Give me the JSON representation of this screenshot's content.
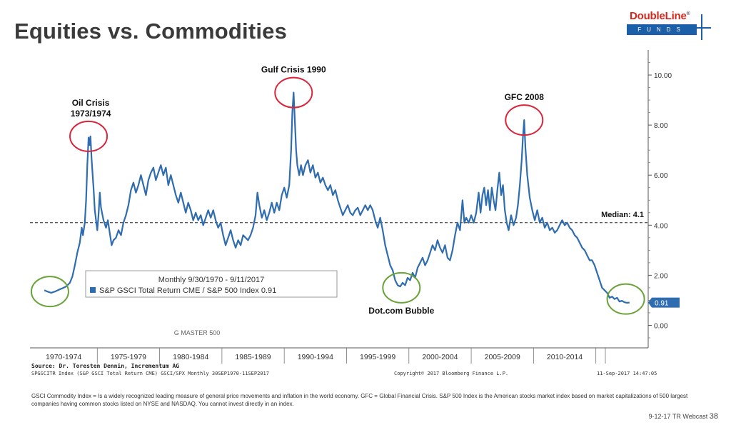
{
  "header": {
    "title": "Equities vs. Commodities",
    "logo_text": "DoubleLine",
    "logo_sub": "FUNDS",
    "logo_mark": "®"
  },
  "chart_data": {
    "type": "line",
    "series": [
      {
        "name": "S&P GSCI Total Return CME / S&P 500 Index 0.91",
        "color": "#2f6db0",
        "points": [
          [
            1970.75,
            1.4
          ],
          [
            1971.0,
            1.35
          ],
          [
            1971.3,
            1.3
          ],
          [
            1971.6,
            1.35
          ],
          [
            1971.9,
            1.42
          ],
          [
            1972.2,
            1.48
          ],
          [
            1972.5,
            1.55
          ],
          [
            1972.8,
            1.7
          ],
          [
            1973.0,
            1.95
          ],
          [
            1973.2,
            2.4
          ],
          [
            1973.4,
            2.9
          ],
          [
            1973.6,
            3.3
          ],
          [
            1973.75,
            3.9
          ],
          [
            1973.85,
            3.6
          ],
          [
            1974.0,
            4.1
          ],
          [
            1974.1,
            5.0
          ],
          [
            1974.2,
            6.4
          ],
          [
            1974.3,
            7.5
          ],
          [
            1974.38,
            7.2
          ],
          [
            1974.45,
            7.55
          ],
          [
            1974.55,
            6.6
          ],
          [
            1974.7,
            5.5
          ],
          [
            1974.8,
            4.6
          ],
          [
            1974.9,
            4.2
          ],
          [
            1975.0,
            3.8
          ],
          [
            1975.1,
            4.4
          ],
          [
            1975.2,
            5.3
          ],
          [
            1975.3,
            4.7
          ],
          [
            1975.5,
            4.2
          ],
          [
            1975.7,
            3.9
          ],
          [
            1975.85,
            4.2
          ],
          [
            1976.0,
            3.7
          ],
          [
            1976.15,
            3.2
          ],
          [
            1976.3,
            3.4
          ],
          [
            1976.5,
            3.5
          ],
          [
            1976.7,
            3.8
          ],
          [
            1976.9,
            3.6
          ],
          [
            1977.1,
            4.1
          ],
          [
            1977.3,
            4.4
          ],
          [
            1977.5,
            4.8
          ],
          [
            1977.7,
            5.4
          ],
          [
            1977.9,
            5.7
          ],
          [
            1978.1,
            5.3
          ],
          [
            1978.3,
            5.6
          ],
          [
            1978.5,
            6.0
          ],
          [
            1978.7,
            5.6
          ],
          [
            1978.9,
            5.2
          ],
          [
            1979.1,
            5.8
          ],
          [
            1979.3,
            6.1
          ],
          [
            1979.5,
            6.3
          ],
          [
            1979.7,
            5.8
          ],
          [
            1979.9,
            6.1
          ],
          [
            1980.1,
            6.4
          ],
          [
            1980.3,
            6.0
          ],
          [
            1980.5,
            6.3
          ],
          [
            1980.7,
            5.6
          ],
          [
            1980.9,
            6.0
          ],
          [
            1981.1,
            5.6
          ],
          [
            1981.3,
            5.2
          ],
          [
            1981.5,
            4.9
          ],
          [
            1981.7,
            5.3
          ],
          [
            1981.9,
            4.9
          ],
          [
            1982.1,
            4.5
          ],
          [
            1982.3,
            4.9
          ],
          [
            1982.5,
            4.6
          ],
          [
            1982.7,
            4.2
          ],
          [
            1982.9,
            4.5
          ],
          [
            1983.1,
            4.2
          ],
          [
            1983.3,
            4.4
          ],
          [
            1983.5,
            4.0
          ],
          [
            1983.7,
            4.3
          ],
          [
            1983.9,
            4.6
          ],
          [
            1984.1,
            4.3
          ],
          [
            1984.3,
            4.6
          ],
          [
            1984.5,
            4.2
          ],
          [
            1984.7,
            3.9
          ],
          [
            1984.9,
            4.1
          ],
          [
            1985.1,
            3.6
          ],
          [
            1985.3,
            3.2
          ],
          [
            1985.5,
            3.5
          ],
          [
            1985.7,
            3.8
          ],
          [
            1985.9,
            3.4
          ],
          [
            1986.1,
            3.1
          ],
          [
            1986.3,
            3.4
          ],
          [
            1986.5,
            3.2
          ],
          [
            1986.7,
            3.6
          ],
          [
            1986.9,
            3.5
          ],
          [
            1987.1,
            3.4
          ],
          [
            1987.3,
            3.6
          ],
          [
            1987.5,
            3.9
          ],
          [
            1987.7,
            4.4
          ],
          [
            1987.85,
            5.3
          ],
          [
            1988.0,
            4.8
          ],
          [
            1988.2,
            4.3
          ],
          [
            1988.4,
            4.6
          ],
          [
            1988.6,
            4.2
          ],
          [
            1988.8,
            4.5
          ],
          [
            1989.0,
            4.9
          ],
          [
            1989.2,
            4.5
          ],
          [
            1989.4,
            4.9
          ],
          [
            1989.6,
            4.6
          ],
          [
            1989.8,
            5.2
          ],
          [
            1990.0,
            5.5
          ],
          [
            1990.2,
            5.1
          ],
          [
            1990.4,
            5.6
          ],
          [
            1990.55,
            7.0
          ],
          [
            1990.65,
            8.5
          ],
          [
            1990.75,
            9.3
          ],
          [
            1990.85,
            8.2
          ],
          [
            1990.95,
            7.0
          ],
          [
            1991.05,
            6.4
          ],
          [
            1991.2,
            6.0
          ],
          [
            1991.35,
            6.4
          ],
          [
            1991.5,
            6.0
          ],
          [
            1991.7,
            6.4
          ],
          [
            1991.9,
            6.6
          ],
          [
            1992.1,
            6.1
          ],
          [
            1992.3,
            6.4
          ],
          [
            1992.5,
            5.9
          ],
          [
            1992.7,
            6.1
          ],
          [
            1992.9,
            5.7
          ],
          [
            1993.1,
            5.9
          ],
          [
            1993.3,
            5.6
          ],
          [
            1993.5,
            5.4
          ],
          [
            1993.7,
            5.6
          ],
          [
            1993.9,
            5.2
          ],
          [
            1994.1,
            5.4
          ],
          [
            1994.3,
            5.0
          ],
          [
            1994.5,
            4.7
          ],
          [
            1994.7,
            4.4
          ],
          [
            1994.9,
            4.6
          ],
          [
            1995.1,
            4.8
          ],
          [
            1995.3,
            4.5
          ],
          [
            1995.5,
            4.4
          ],
          [
            1995.7,
            4.6
          ],
          [
            1995.9,
            4.7
          ],
          [
            1996.1,
            4.4
          ],
          [
            1996.3,
            4.6
          ],
          [
            1996.5,
            4.8
          ],
          [
            1996.7,
            4.6
          ],
          [
            1996.9,
            4.8
          ],
          [
            1997.1,
            4.6
          ],
          [
            1997.3,
            4.2
          ],
          [
            1997.5,
            3.9
          ],
          [
            1997.7,
            4.3
          ],
          [
            1997.9,
            3.8
          ],
          [
            1998.1,
            3.2
          ],
          [
            1998.3,
            2.8
          ],
          [
            1998.5,
            2.4
          ],
          [
            1998.7,
            2.2
          ],
          [
            1998.9,
            1.8
          ],
          [
            1999.1,
            1.6
          ],
          [
            1999.3,
            1.55
          ],
          [
            1999.5,
            1.7
          ],
          [
            1999.7,
            1.6
          ],
          [
            1999.9,
            1.9
          ],
          [
            2000.1,
            1.8
          ],
          [
            2000.3,
            2.1
          ],
          [
            2000.5,
            1.9
          ],
          [
            2000.7,
            2.3
          ],
          [
            2000.9,
            2.5
          ],
          [
            2001.1,
            2.7
          ],
          [
            2001.3,
            2.4
          ],
          [
            2001.5,
            2.6
          ],
          [
            2001.7,
            2.9
          ],
          [
            2001.9,
            3.2
          ],
          [
            2002.1,
            3.0
          ],
          [
            2002.3,
            3.4
          ],
          [
            2002.5,
            3.1
          ],
          [
            2002.7,
            2.9
          ],
          [
            2002.9,
            3.2
          ],
          [
            2003.1,
            2.7
          ],
          [
            2003.3,
            2.6
          ],
          [
            2003.5,
            3.0
          ],
          [
            2003.7,
            3.6
          ],
          [
            2003.9,
            4.1
          ],
          [
            2004.1,
            3.8
          ],
          [
            2004.3,
            5.0
          ],
          [
            2004.45,
            4.1
          ],
          [
            2004.6,
            4.3
          ],
          [
            2004.8,
            4.1
          ],
          [
            2005.0,
            4.4
          ],
          [
            2005.2,
            4.1
          ],
          [
            2005.4,
            4.5
          ],
          [
            2005.6,
            5.3
          ],
          [
            2005.75,
            4.5
          ],
          [
            2005.9,
            5.2
          ],
          [
            2006.05,
            5.5
          ],
          [
            2006.2,
            4.8
          ],
          [
            2006.35,
            5.4
          ],
          [
            2006.5,
            4.6
          ],
          [
            2006.65,
            5.5
          ],
          [
            2006.8,
            5.0
          ],
          [
            2006.95,
            4.6
          ],
          [
            2007.1,
            5.4
          ],
          [
            2007.25,
            6.1
          ],
          [
            2007.4,
            5.2
          ],
          [
            2007.55,
            5.6
          ],
          [
            2007.7,
            4.6
          ],
          [
            2007.85,
            4.1
          ],
          [
            2008.0,
            3.8
          ],
          [
            2008.2,
            4.4
          ],
          [
            2008.4,
            4.0
          ],
          [
            2008.6,
            4.3
          ],
          [
            2008.75,
            4.8
          ],
          [
            2008.9,
            5.6
          ],
          [
            2009.05,
            6.6
          ],
          [
            2009.15,
            7.5
          ],
          [
            2009.25,
            8.2
          ],
          [
            2009.35,
            7.1
          ],
          [
            2009.5,
            6.0
          ],
          [
            2009.7,
            5.1
          ],
          [
            2009.9,
            4.6
          ],
          [
            2010.1,
            4.2
          ],
          [
            2010.3,
            4.6
          ],
          [
            2010.5,
            4.1
          ],
          [
            2010.7,
            4.3
          ],
          [
            2010.9,
            3.9
          ],
          [
            2011.1,
            4.1
          ],
          [
            2011.3,
            3.8
          ],
          [
            2011.5,
            3.9
          ],
          [
            2011.7,
            3.7
          ],
          [
            2011.9,
            3.8
          ],
          [
            2012.1,
            4.0
          ],
          [
            2012.3,
            4.2
          ],
          [
            2012.5,
            4.0
          ],
          [
            2012.7,
            4.1
          ],
          [
            2012.9,
            3.9
          ],
          [
            2013.1,
            3.8
          ],
          [
            2013.3,
            3.6
          ],
          [
            2013.5,
            3.5
          ],
          [
            2013.7,
            3.3
          ],
          [
            2013.9,
            3.1
          ],
          [
            2014.1,
            3.0
          ],
          [
            2014.3,
            2.8
          ],
          [
            2014.5,
            2.6
          ],
          [
            2014.7,
            2.6
          ],
          [
            2014.9,
            2.4
          ],
          [
            2015.1,
            2.1
          ],
          [
            2015.3,
            1.8
          ],
          [
            2015.5,
            1.5
          ],
          [
            2015.7,
            1.4
          ],
          [
            2015.9,
            1.3
          ],
          [
            2016.1,
            1.1
          ],
          [
            2016.3,
            1.15
          ],
          [
            2016.5,
            1.05
          ],
          [
            2016.7,
            1.1
          ],
          [
            2016.9,
            0.95
          ],
          [
            2017.1,
            0.98
          ],
          [
            2017.3,
            0.92
          ],
          [
            2017.5,
            0.9
          ],
          [
            2017.7,
            0.91
          ]
        ]
      }
    ],
    "x_range": [
      1969.6,
      2019.2
    ],
    "ylim": [
      -0.9,
      11.0
    ],
    "yticks": [
      0,
      2,
      4,
      6,
      8,
      10
    ],
    "ytick_labels": [
      "0.00",
      "2.00",
      "4.00",
      "6.00",
      "8.00",
      "10.00"
    ],
    "x_period_labels": [
      {
        "label": "1970-1974",
        "from": 1969.6,
        "to": 1975.0
      },
      {
        "label": "1975-1979",
        "from": 1975.0,
        "to": 1980.0
      },
      {
        "label": "1980-1984",
        "from": 1980.0,
        "to": 1985.0
      },
      {
        "label": "1985-1989",
        "from": 1985.0,
        "to": 1990.0
      },
      {
        "label": "1990-1994",
        "from": 1990.0,
        "to": 1995.0
      },
      {
        "label": "1995-1999",
        "from": 1995.0,
        "to": 2000.0
      },
      {
        "label": "2000-2004",
        "from": 2000.0,
        "to": 2005.0
      },
      {
        "label": "2005-2009",
        "from": 2005.0,
        "to": 2010.0
      },
      {
        "label": "2010-2014",
        "from": 2010.0,
        "to": 2015.0
      }
    ],
    "median": {
      "value": 4.1,
      "label": "Median: 4.1"
    },
    "last_value_label": "0.91",
    "last_value_color": "#2f6db0",
    "legend": {
      "line1": "Monthly 9/30/1970 - 9/11/2017",
      "line2": "S&P GSCI Total Return CME / S&P 500 Index 0.91"
    },
    "annotations": [
      {
        "lines": [
          "Oil Crisis",
          "1973/1974"
        ],
        "x": 1974.3,
        "y": 7.55,
        "circle": "red"
      },
      {
        "lines": [
          "Gulf Crisis 1990"
        ],
        "x": 1990.75,
        "y": 9.3,
        "circle": "red"
      },
      {
        "lines": [
          "GFC 2008"
        ],
        "x": 2009.25,
        "y": 8.2,
        "circle": "red"
      },
      {
        "lines": [
          "Dot.com Bubble"
        ],
        "x": 1999.4,
        "y": 1.5,
        "circle": "green"
      },
      {
        "lines": [],
        "x": 1971.2,
        "y": 1.35,
        "circle": "green"
      },
      {
        "lines": [],
        "x": 2017.4,
        "y": 1.05,
        "circle": "green"
      }
    ],
    "watermark": "G MASTER 500",
    "circle_colors": {
      "red": "#d9263a",
      "green": "#6aa33a"
    },
    "grid": false
  },
  "source": {
    "bold": "Source: Dr. Toresten Dennin, Incrementum AG",
    "left": "SPGSCITR Index (S&P GSCI Total Return CME) GSCI/SPX  Monthly 30SEP1970-11SEP2017",
    "center": "Copyright© 2017 Bloomberg Finance L.P.",
    "right": "11-Sep-2017 14:47:05"
  },
  "footnote": "GSCI Commodity Index = Is a widely recognized leading measure of general price movements and inflation in the world economy. GFC = Global Financial Crisis. S&P 500 Index is the American stocks market index based on market capitalizations of 500 largest companies having common stocks listed on NYSE and NASDAQ. You cannot invest directly in an index.",
  "page": {
    "label": "9-12-17 TR Webcast",
    "number": "38"
  }
}
